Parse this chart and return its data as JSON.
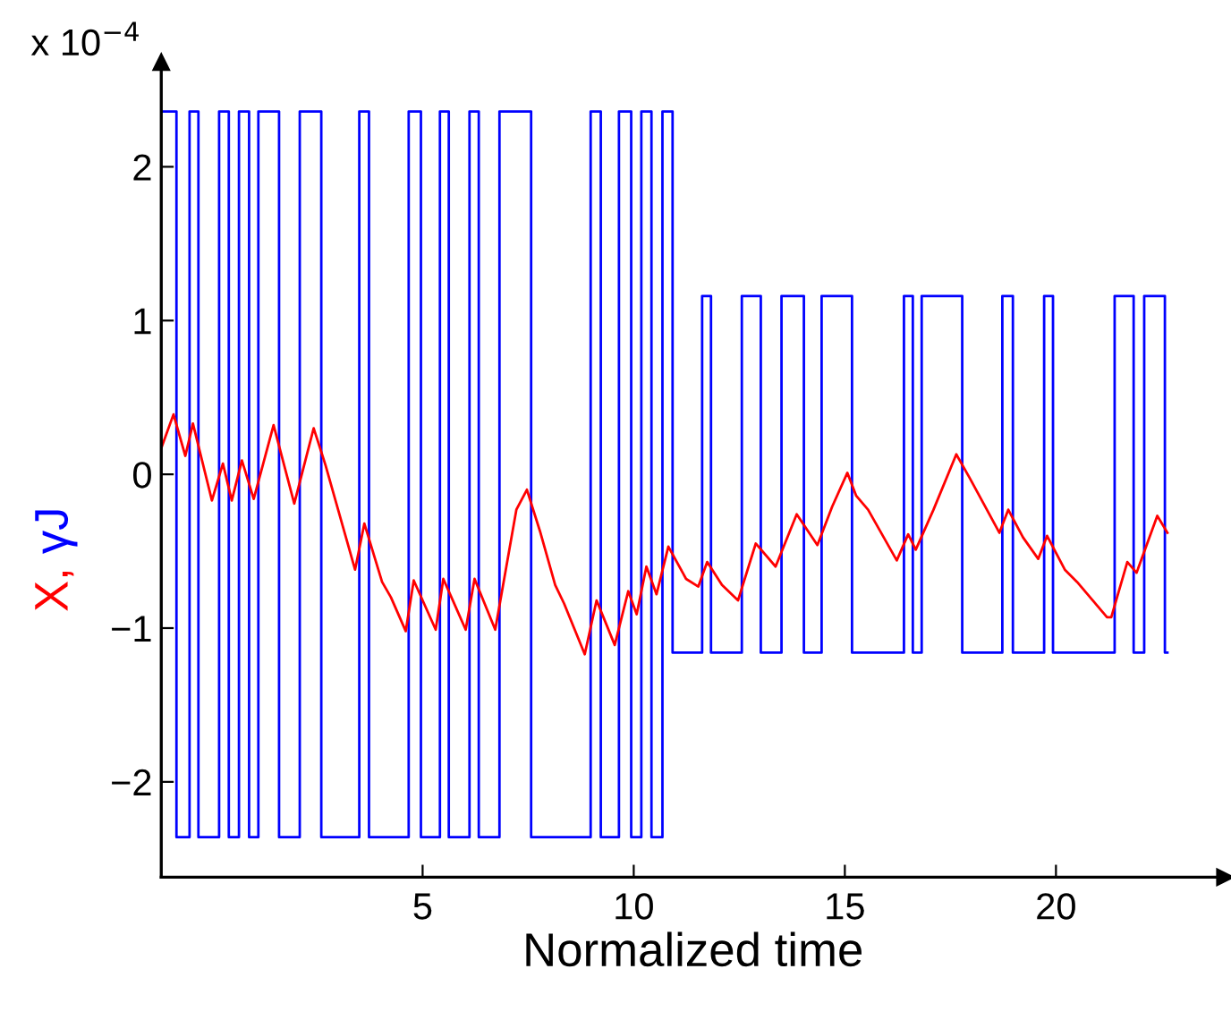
{
  "chart_data": {
    "type": "line",
    "xlabel": "Normalized time",
    "ylabel": "X, γJ",
    "annotations": [
      "x 10$^{−4}$"
    ],
    "xlim": [
      -1.19,
      24
    ],
    "ylim": [
      -2.62,
      2.68
    ],
    "xticks": [
      5,
      10,
      15,
      20
    ],
    "yticks": [
      -2,
      -1,
      0,
      1,
      2
    ],
    "grid": false,
    "legend": false,
    "marker": "none",
    "line_style": "solid",
    "series": [
      {
        "type": "step",
        "color": "#0000ff",
        "x": [
          -1.19,
          -0.83,
          -0.52,
          -0.31,
          0.18,
          0.41,
          0.65,
          0.89,
          1.11,
          1.6,
          2.09,
          2.6,
          3.5,
          3.73,
          4.67,
          4.96,
          5.41,
          5.62,
          6.11,
          6.33,
          6.82,
          7.57,
          8.98,
          9.22,
          9.65,
          9.94,
          10.18,
          10.42,
          10.68,
          10.92,
          11.62,
          11.83,
          12.56,
          13.01,
          13.5,
          14.03,
          14.45,
          15.17,
          16.4,
          16.61,
          16.82,
          17.78,
          18.73,
          18.98,
          19.72,
          19.93,
          21.39,
          21.84,
          22.09,
          22.58,
          22.64
        ],
        "values": [
          2.36,
          -2.36,
          2.36,
          -2.36,
          2.36,
          -2.36,
          2.36,
          -2.36,
          2.36,
          -2.36,
          2.36,
          -2.36,
          2.36,
          -2.36,
          2.36,
          -2.36,
          2.36,
          -2.36,
          2.36,
          -2.36,
          2.36,
          -2.36,
          2.36,
          -2.36,
          2.36,
          -2.36,
          2.36,
          -2.36,
          2.36,
          -1.16,
          1.16,
          -1.16,
          1.16,
          -1.16,
          1.16,
          -1.16,
          1.16,
          -1.16,
          1.16,
          -1.16,
          1.16,
          -1.16,
          1.16,
          -1.16,
          1.16,
          -1.16,
          1.16,
          -1.16,
          1.16,
          -1.16,
          -1.16
        ]
      },
      {
        "color": "#ff0000",
        "x": [
          -1.19,
          -0.9,
          -0.62,
          -0.44,
          0.01,
          0.27,
          0.48,
          0.72,
          1.0,
          1.47,
          1.96,
          2.42,
          2.7,
          3.4,
          3.62,
          4.04,
          4.25,
          4.6,
          4.79,
          5.31,
          5.49,
          6.02,
          6.23,
          6.72,
          7.22,
          7.47,
          7.78,
          8.14,
          8.35,
          8.84,
          9.12,
          9.55,
          9.87,
          10.07,
          10.3,
          10.54,
          10.82,
          11.24,
          11.53,
          11.74,
          12.09,
          12.47,
          12.89,
          13.36,
          13.86,
          14.35,
          14.7,
          15.06,
          15.27,
          15.55,
          16.23,
          16.5,
          16.68,
          17.1,
          17.64,
          17.95,
          18.66,
          18.87,
          19.22,
          19.58,
          19.79,
          20.21,
          20.5,
          21.21,
          21.31,
          21.69,
          21.91,
          22.4,
          22.64
        ],
        "values": [
          0.17,
          0.39,
          0.12,
          0.33,
          -0.17,
          0.07,
          -0.17,
          0.09,
          -0.16,
          0.32,
          -0.19,
          0.3,
          0.06,
          -0.62,
          -0.32,
          -0.7,
          -0.8,
          -1.02,
          -0.69,
          -1.01,
          -0.68,
          -1.01,
          -0.68,
          -1.01,
          -0.23,
          -0.1,
          -0.37,
          -0.72,
          -0.84,
          -1.17,
          -0.82,
          -1.11,
          -0.76,
          -0.91,
          -0.6,
          -0.78,
          -0.47,
          -0.68,
          -0.73,
          -0.57,
          -0.72,
          -0.82,
          -0.45,
          -0.6,
          -0.26,
          -0.46,
          -0.21,
          0.01,
          -0.14,
          -0.23,
          -0.56,
          -0.39,
          -0.49,
          -0.23,
          0.13,
          -0.02,
          -0.38,
          -0.23,
          -0.41,
          -0.55,
          -0.4,
          -0.62,
          -0.7,
          -0.93,
          -0.93,
          -0.57,
          -0.64,
          -0.27,
          -0.38
        ]
      }
    ]
  }
}
